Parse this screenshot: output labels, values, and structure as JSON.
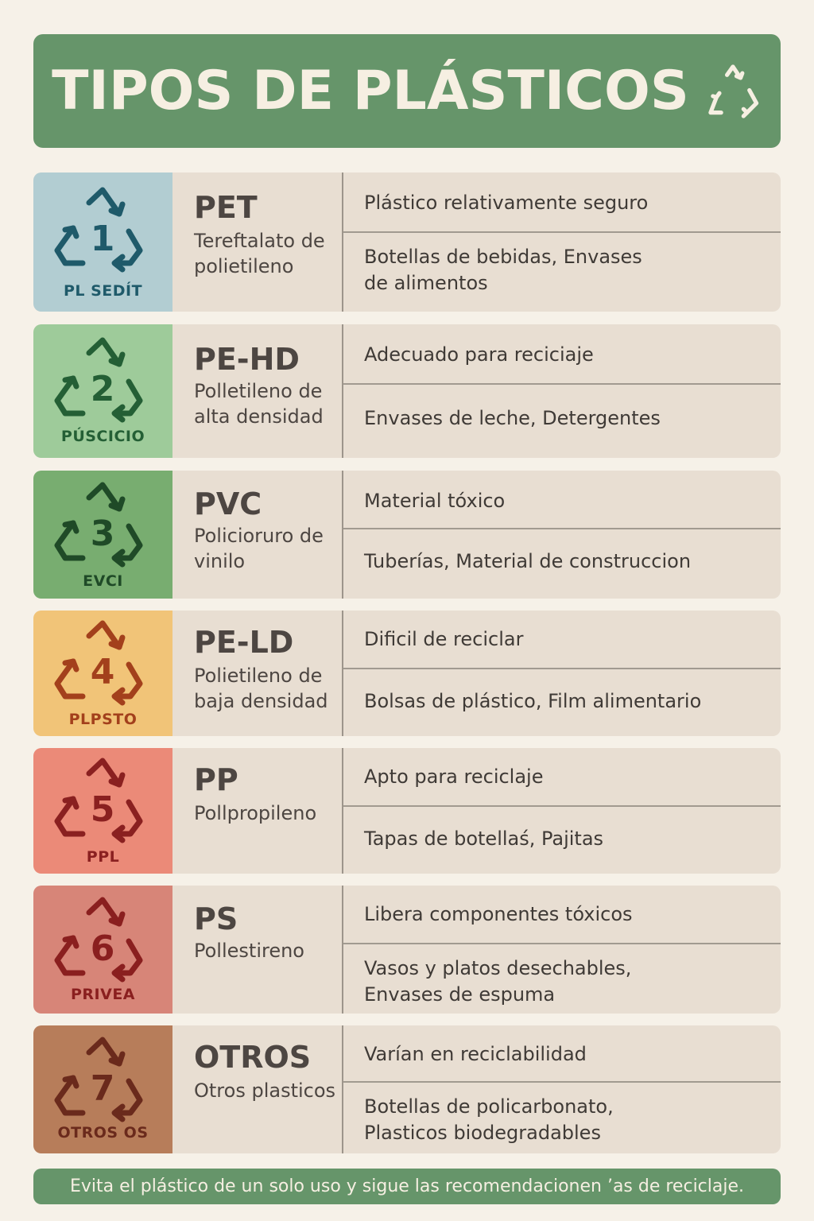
{
  "title": "TIPOS DE PLÁSTICOS",
  "plastics": [
    {
      "number": "1",
      "code": "PL SEDÍT",
      "abbr": "PET",
      "full": "Tereftalato de polietileno",
      "property": "Plástico relativamente seguro",
      "uses": "Botellas de bebidas, Envases de alimentos",
      "bg": "#b2cdd2",
      "fg": "#1f5a6a"
    },
    {
      "number": "2",
      "code": "PÚSCICIO",
      "abbr": "PE-HD",
      "full": "Polletileno de alta densidad",
      "property": "Adecuado para reciciaje",
      "uses": "Envases de leche, Detergentes",
      "bg": "#9ecb9a",
      "fg": "#245f35"
    },
    {
      "number": "3",
      "code": "EVCI",
      "abbr": "PVC",
      "full": "Policioruro de vinilo",
      "property": "Material tóxico",
      "uses": "Tuberías, Material de construccion",
      "bg": "#78ad70",
      "fg": "#1f4a27"
    },
    {
      "number": "4",
      "code": "PLPSTO",
      "abbr": "PE-LD",
      "full": "Polietileno de baja densidad",
      "property": "Dificil de reciclar",
      "uses": "Bolsas de plástico, Film alimentario",
      "bg": "#f1c478",
      "fg": "#a3401c"
    },
    {
      "number": "5",
      "code": "PPL",
      "abbr": "PP",
      "full": "Pollpropileno",
      "property": "Apto para reciclaje",
      "uses": "Tapas de botellaś, Pajitas",
      "bg": "#eb8a78",
      "fg": "#8a2020"
    },
    {
      "number": "6",
      "code": "PRIVEA",
      "abbr": "PS",
      "full": "Pollestireno",
      "property": "Libera componentes tóxicos",
      "uses": "Vasos y platos desechables, Envases de espuma",
      "bg": "#d78578",
      "fg": "#8a1f1f"
    },
    {
      "number": "7",
      "code": "OTROS OS",
      "abbr": "OTROS",
      "full": "Otros plasticos",
      "property": "Varían en reciclabilidad",
      "uses": "Botellas de policarbonato, Plasticos biodegradables",
      "bg": "#b77d5a",
      "fg": "#6a2a1c"
    }
  ],
  "footer": "Evita el plástico de un solo uso y sigue las recomendacionen ’as de reciclaje."
}
